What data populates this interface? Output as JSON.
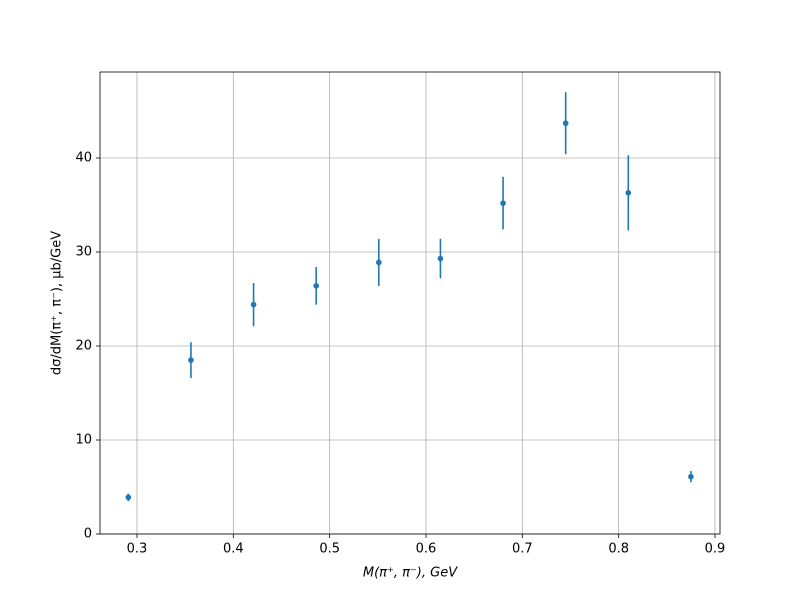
{
  "chart_data": {
    "type": "scatter",
    "x_label": "M(π⁺, π⁻), GeV",
    "y_label": "dσ/dM(π⁺, π⁻), μb/GeV",
    "x": [
      0.291,
      0.356,
      0.421,
      0.486,
      0.551,
      0.615,
      0.68,
      0.745,
      0.81,
      0.875
    ],
    "values": [
      3.9,
      18.5,
      24.4,
      26.4,
      28.9,
      29.3,
      35.2,
      43.7,
      36.3,
      6.1
    ],
    "errors": [
      0.4,
      1.9,
      2.3,
      2.0,
      2.5,
      2.1,
      2.8,
      3.3,
      4.0,
      0.6
    ],
    "color": "#1f77b4",
    "xlim": [
      0.2616,
      0.9052
    ],
    "ylim": [
      0,
      49.15
    ],
    "xticks": [
      0.3,
      0.4,
      0.5,
      0.6,
      0.7,
      0.8,
      0.9
    ],
    "yticks": [
      0,
      10,
      20,
      30,
      40
    ],
    "grid": true
  }
}
